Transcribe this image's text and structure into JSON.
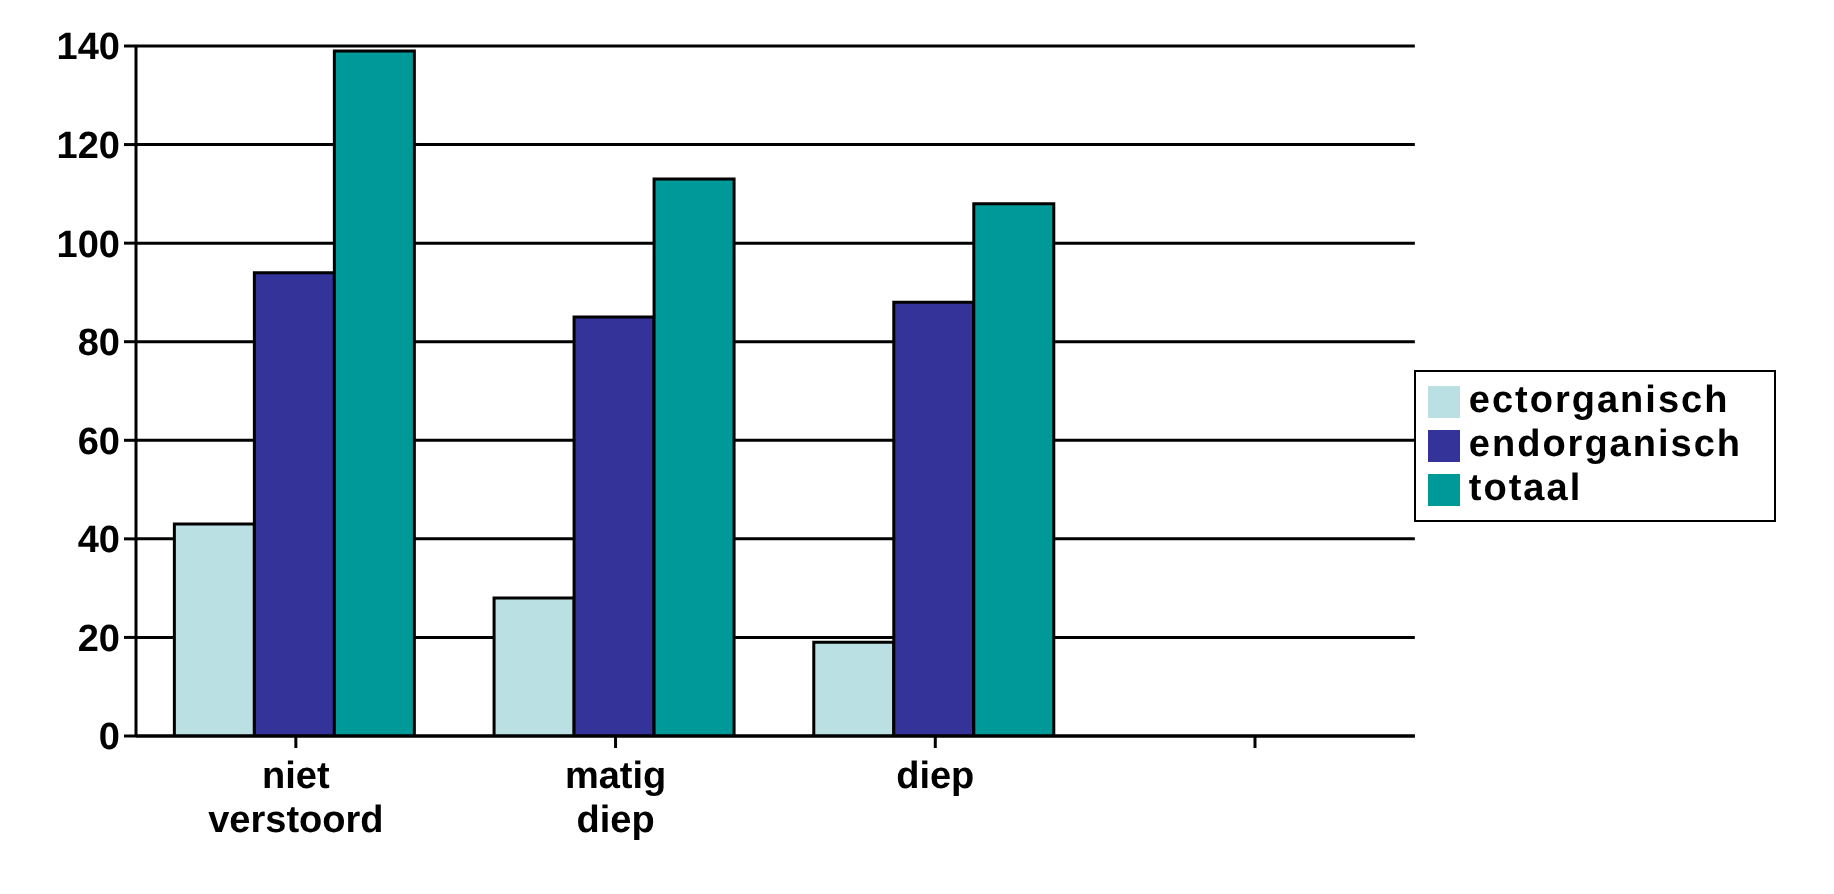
{
  "chart_data": {
    "type": "bar",
    "categories": [
      "niet verstoord",
      "matig diep",
      "diep",
      null
    ],
    "series": [
      {
        "name": "ectorganisch",
        "color": "#bbe0e3",
        "values": [
          43,
          28,
          19,
          null
        ]
      },
      {
        "name": "endorganisch",
        "color": "#333399",
        "values": [
          94,
          85,
          88,
          null
        ]
      },
      {
        "name": "totaal",
        "color": "#009999",
        "values": [
          139,
          113,
          108,
          null
        ]
      }
    ],
    "ylim": [
      0,
      140
    ],
    "yticks": [
      0,
      20,
      40,
      60,
      80,
      100,
      120,
      140
    ],
    "grid": "y",
    "legend": "right"
  }
}
